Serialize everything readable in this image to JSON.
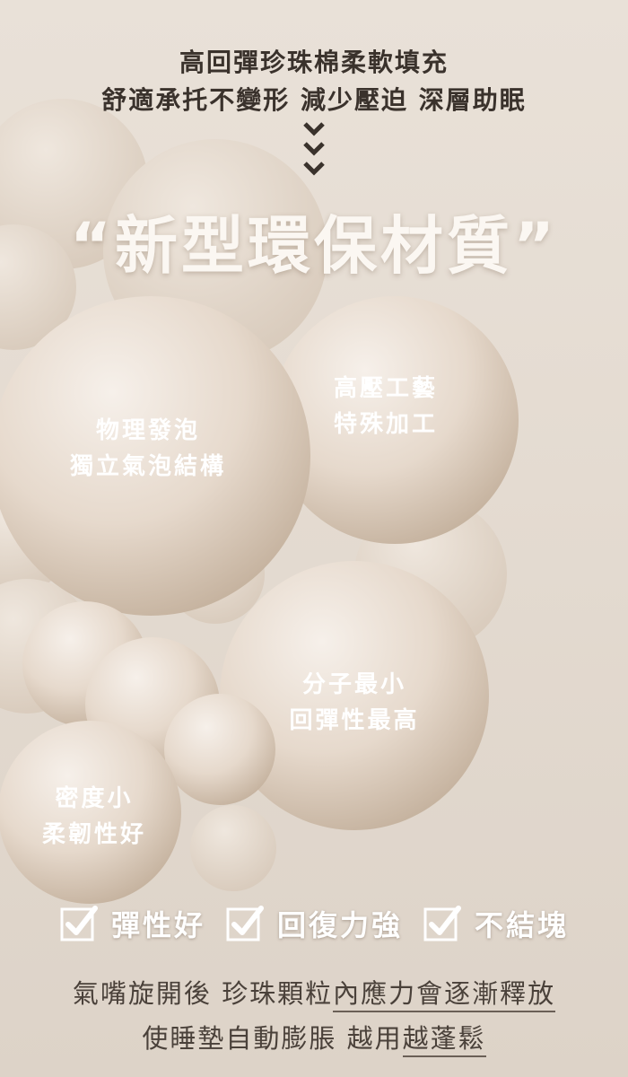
{
  "header": {
    "line1": "高回彈珍珠棉柔軟填充",
    "line2": "舒適承托不變形 減少壓迫 深層助眠"
  },
  "title": "“新型環保材質”",
  "bubble_labels": {
    "physical": {
      "line1": "物理發泡",
      "line2": "獨立氣泡結構"
    },
    "pressure": {
      "line1": "高壓工藝",
      "line2": "特殊加工"
    },
    "molecule": {
      "line1": "分子最小",
      "line2": "回彈性最高"
    },
    "density": {
      "line1": "密度小",
      "line2": "柔韌性好"
    }
  },
  "features": [
    {
      "label": "彈性好",
      "icon": "checkbox-icon"
    },
    {
      "label": "回復力強",
      "icon": "checkbox-icon"
    },
    {
      "label": "不結塊",
      "icon": "checkbox-icon"
    }
  ],
  "footer": {
    "line1_a": "氣嘴旋開後 珍珠顆粒",
    "line1_b": "內應力會逐漸釋放",
    "line2_a": "使睡墊自動膨脹 越用",
    "line2_b": "越蓬鬆"
  },
  "colors": {
    "background": "#e6ddd3",
    "bubble_light": "#f4ede6",
    "bubble_dark": "#c8b6a2",
    "text_dark": "#3a322c",
    "title": "#fbf7f2"
  }
}
